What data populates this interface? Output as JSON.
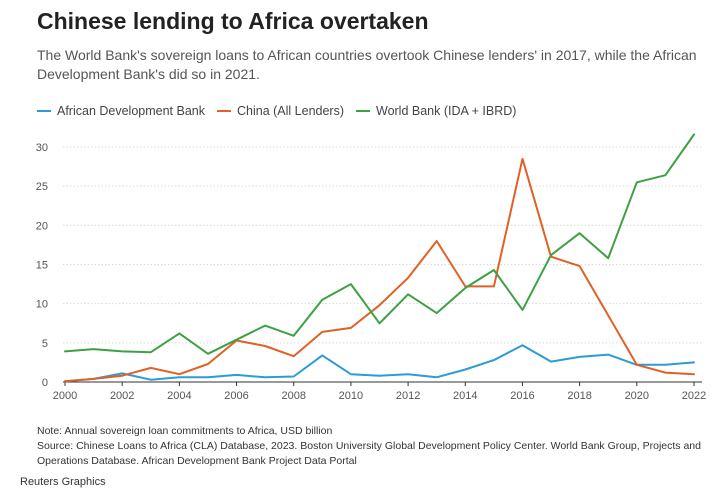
{
  "title": "Chinese lending to Africa overtaken",
  "subtitle": "The World Bank's sovereign loans to African countries overtook Chinese lenders' in 2017, while the African Development Bank's did so in 2021.",
  "note": "Note: Annual sovereign loan commitments to Africa, USD billion",
  "source": "Source: Chinese Loans to Africa (CLA) Database, 2023. Boston University Global Development Policy Center. World Bank Group, Projects and Operations Database. African Development Bank Project Data Portal",
  "credit": "Reuters Graphics",
  "chart_data": {
    "type": "line",
    "title": "Chinese lending to Africa overtaken",
    "xlabel": "",
    "ylabel": "",
    "xlim": [
      2000,
      2022
    ],
    "ylim": [
      0,
      30
    ],
    "x_ticks": [
      "2000",
      "2002",
      "2004",
      "2006",
      "2008",
      "2010",
      "2012",
      "2014",
      "2016",
      "2018",
      "2020",
      "2022"
    ],
    "y_ticks": [
      "0",
      "5",
      "10",
      "15",
      "20",
      "25",
      "30"
    ],
    "grid": "horizontal",
    "legend_position": "top-left",
    "x": [
      2000,
      2001,
      2002,
      2003,
      2004,
      2005,
      2006,
      2007,
      2008,
      2009,
      2010,
      2011,
      2012,
      2013,
      2014,
      2015,
      2016,
      2017,
      2018,
      2019,
      2020,
      2021,
      2022
    ],
    "series": [
      {
        "name": "African Development Bank",
        "color": "#2d9bd4",
        "values": [
          0.1,
          0.4,
          1.1,
          0.3,
          0.6,
          0.6,
          0.9,
          0.6,
          0.7,
          3.4,
          1.0,
          0.8,
          1.0,
          0.6,
          1.6,
          2.8,
          4.7,
          2.6,
          3.2,
          3.5,
          2.2,
          2.2,
          2.5
        ]
      },
      {
        "name": "China (All Lenders)",
        "color": "#e06126",
        "values": [
          0.1,
          0.4,
          0.8,
          1.8,
          1.0,
          2.3,
          5.3,
          4.6,
          3.3,
          6.4,
          6.9,
          9.8,
          13.3,
          18.0,
          12.2,
          12.2,
          28.5,
          16.0,
          14.8,
          8.5,
          2.2,
          1.2,
          1.0
        ]
      },
      {
        "name": "World Bank (IDA + IBRD)",
        "color": "#3ea043",
        "values": [
          3.9,
          4.2,
          3.9,
          3.8,
          6.2,
          3.6,
          5.4,
          7.2,
          5.9,
          10.5,
          12.5,
          7.5,
          11.2,
          8.8,
          12.0,
          14.3,
          9.2,
          16.2,
          19.0,
          15.8,
          25.5,
          26.4,
          31.6
        ]
      }
    ]
  }
}
